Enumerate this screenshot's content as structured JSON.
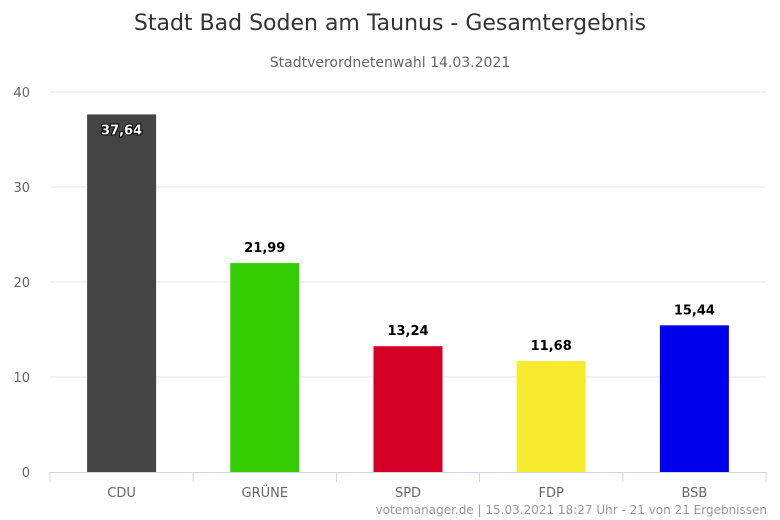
{
  "chart_data": {
    "type": "bar",
    "title": "Stadt Bad Soden am Taunus - Gesamtergebnis",
    "subtitle": "Stadtverordnetenwahl 14.03.2021",
    "categories": [
      "CDU",
      "GRÜNE",
      "SPD",
      "FDP",
      "BSB"
    ],
    "values": [
      37.64,
      21.99,
      13.24,
      11.68,
      15.44
    ],
    "value_labels": [
      "37,64",
      "21,99",
      "13,24",
      "11,68",
      "15,44"
    ],
    "colors": [
      "#444444",
      "#33cc00",
      "#d40026",
      "#f8eb2e",
      "#0000ee"
    ],
    "ylim": [
      0,
      40
    ],
    "yticks": [
      0,
      10,
      20,
      30,
      40
    ],
    "grid": true,
    "xlabel": "",
    "ylabel": ""
  },
  "credit": "votemanager.de | 15.03.2021 18:27 Uhr - 21 von 21 Ergebnissen"
}
